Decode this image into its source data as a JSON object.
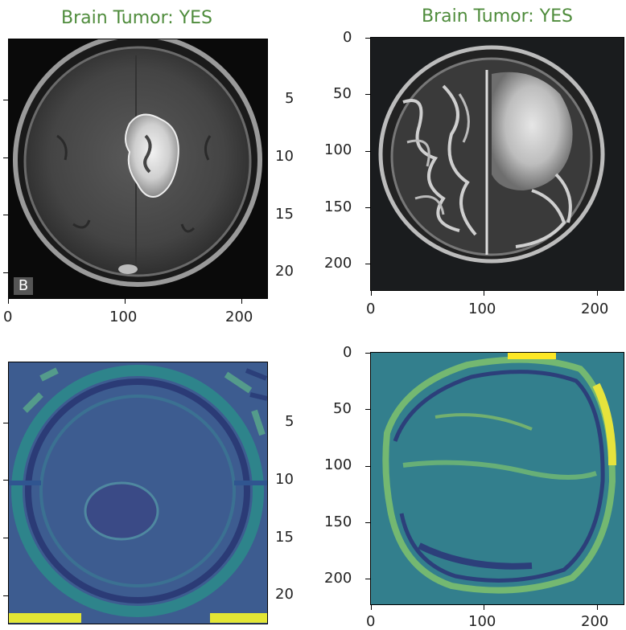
{
  "colors": {
    "title": "#4f8c3c",
    "heatmap_low": "#3b528b",
    "heatmap_mid": "#21918c",
    "heatmap_high": "#fde725"
  },
  "titles": {
    "top_left": "Brain Tumor: YES",
    "top_right": "Brain Tumor: YES"
  },
  "top_left": {
    "image": "mri-axial-scan-icon",
    "letter": "B",
    "xticks": [
      "0",
      "100",
      "200"
    ],
    "yticks": [
      "5",
      "10",
      "15",
      "20"
    ]
  },
  "top_right": {
    "image": "mri-axial-scan-icon",
    "xticks": [
      "0",
      "100",
      "200"
    ],
    "yticks": [
      "0",
      "50",
      "100",
      "150",
      "200"
    ]
  },
  "bottom_left": {
    "image": "feature-map-heatmap-icon",
    "yticks": [
      "5",
      "10",
      "15",
      "20"
    ]
  },
  "bottom_right": {
    "image": "feature-map-heatmap-icon",
    "xticks": [
      "0",
      "100",
      "200"
    ],
    "yticks": [
      "0",
      "50",
      "100",
      "150",
      "200"
    ]
  }
}
